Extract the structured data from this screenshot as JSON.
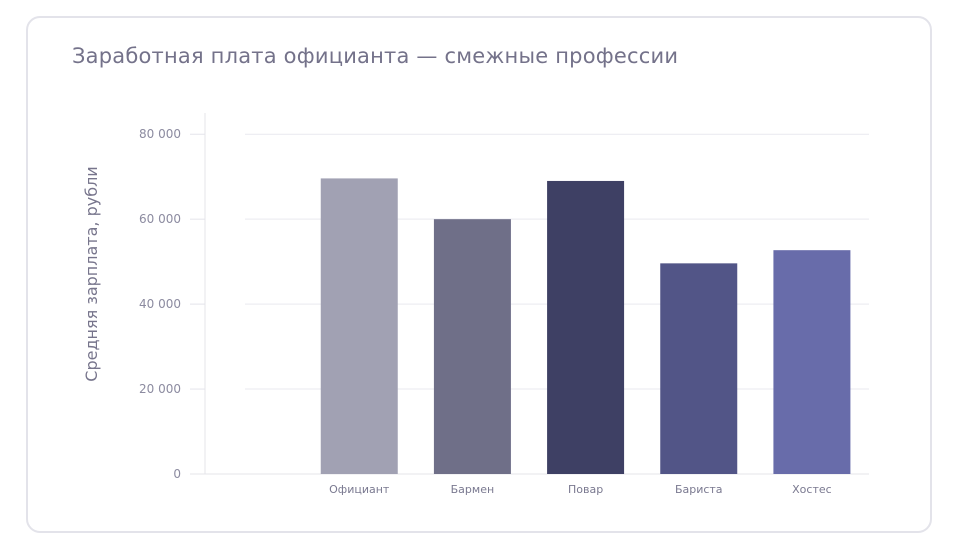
{
  "chart_data": {
    "type": "bar",
    "title": "Заработная плата официанта — смежные профессии",
    "ylabel": "Средняя зарплата, рубли",
    "xlabel": "",
    "categories": [
      "Официант",
      "Бармен",
      "Повар",
      "Бариста",
      "Хостес"
    ],
    "values": [
      69600,
      60000,
      69000,
      49600,
      52700
    ],
    "colors": [
      "#a1a1b3",
      "#6f6f88",
      "#3e4064",
      "#525587",
      "#686caa"
    ],
    "ylim": [
      0,
      85000
    ],
    "yticks": [
      0,
      20000,
      40000,
      60000,
      80000
    ],
    "ytick_labels": [
      "0",
      "20 000",
      "40 000",
      "60 000",
      "80 000"
    ],
    "grid": true,
    "legend": "none"
  }
}
